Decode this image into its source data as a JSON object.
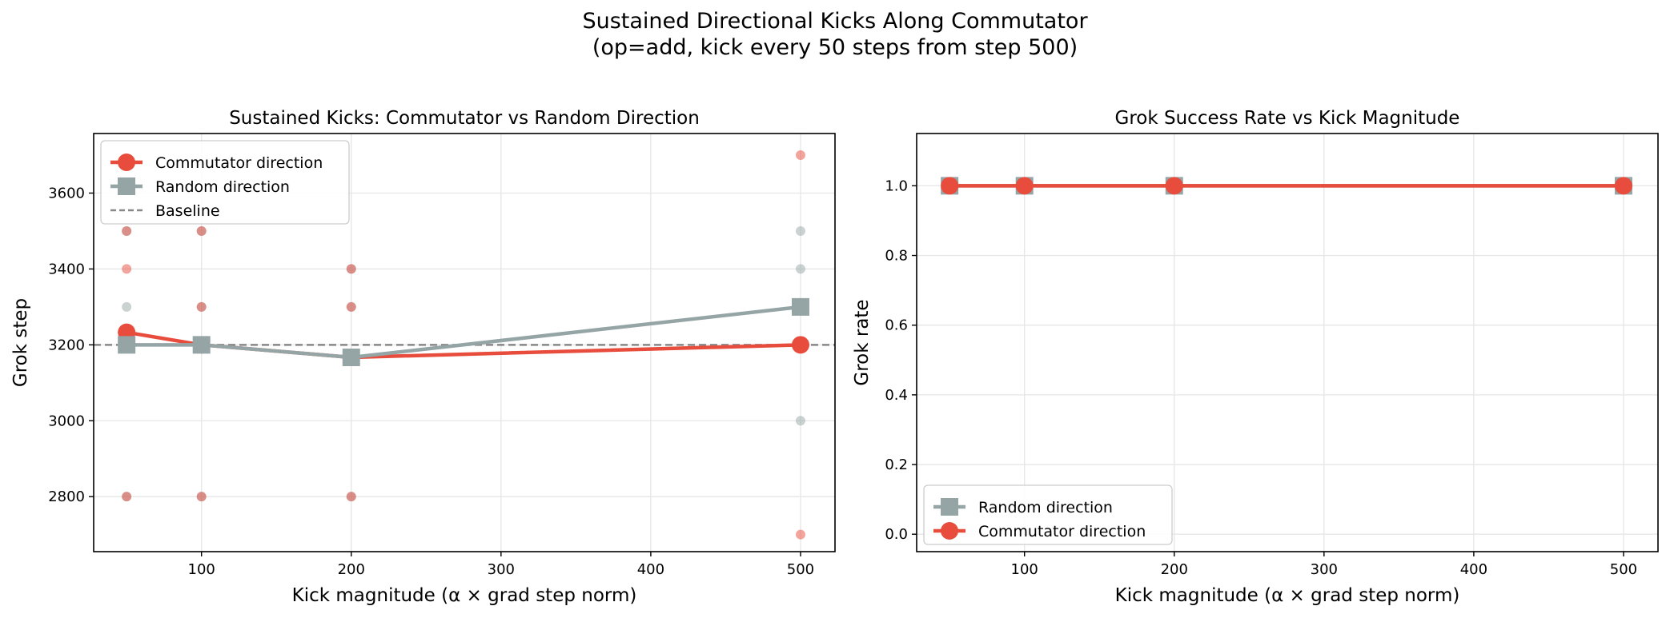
{
  "suptitle": {
    "line1": "Sustained Directional Kicks Along Commutator",
    "line2": "(op=add, kick every 50 steps from step 500)"
  },
  "colors": {
    "commutator": "#e74c3c",
    "random": "#95a5a6",
    "baseline": "#888888",
    "grid": "#e6e6e6"
  },
  "chart_data": [
    {
      "type": "line",
      "title": "Sustained Kicks: Commutator vs Random Direction",
      "xlabel": "Kick magnitude (α × grad step norm)",
      "ylabel": "Grok step",
      "xlim": [
        28,
        523
      ],
      "ylim": [
        2655,
        3757
      ],
      "xticks": [
        100,
        200,
        300,
        400,
        500
      ],
      "yticks": [
        2800,
        3000,
        3200,
        3400,
        3600
      ],
      "grid": true,
      "legend_position": "upper left",
      "series": [
        {
          "name": "Commutator direction",
          "color": "#e74c3c",
          "marker": "circle",
          "x": [
            50,
            100,
            200,
            500
          ],
          "y": [
            3233,
            3200,
            3167,
            3200
          ]
        },
        {
          "name": "Random direction",
          "color": "#95a5a6",
          "marker": "square",
          "x": [
            50,
            100,
            200,
            500
          ],
          "y": [
            3200,
            3200,
            3167,
            3300
          ]
        }
      ],
      "baseline": {
        "name": "Baseline",
        "y": 3200,
        "style": "dashed",
        "color": "#888888"
      },
      "scatter_points": {
        "commutator": [
          {
            "x": 50,
            "y": 3500
          },
          {
            "x": 50,
            "y": 3400
          },
          {
            "x": 50,
            "y": 2800
          },
          {
            "x": 100,
            "y": 3500
          },
          {
            "x": 100,
            "y": 3300
          },
          {
            "x": 100,
            "y": 2800
          },
          {
            "x": 200,
            "y": 3400
          },
          {
            "x": 200,
            "y": 3300
          },
          {
            "x": 200,
            "y": 2800
          },
          {
            "x": 500,
            "y": 3700
          },
          {
            "x": 500,
            "y": 2700
          }
        ],
        "random": [
          {
            "x": 50,
            "y": 3500
          },
          {
            "x": 50,
            "y": 3300
          },
          {
            "x": 50,
            "y": 2800
          },
          {
            "x": 100,
            "y": 3500
          },
          {
            "x": 100,
            "y": 3300
          },
          {
            "x": 100,
            "y": 2800
          },
          {
            "x": 200,
            "y": 3400
          },
          {
            "x": 200,
            "y": 3300
          },
          {
            "x": 200,
            "y": 2800
          },
          {
            "x": 500,
            "y": 3500
          },
          {
            "x": 500,
            "y": 3400
          },
          {
            "x": 500,
            "y": 3000
          }
        ]
      }
    },
    {
      "type": "line",
      "title": "Grok Success Rate vs Kick Magnitude",
      "xlabel": "Kick magnitude (α × grad step norm)",
      "ylabel": "Grok rate",
      "xlim": [
        28,
        523
      ],
      "ylim": [
        -0.05,
        1.15
      ],
      "xticks": [
        100,
        200,
        300,
        400,
        500
      ],
      "yticks": [
        0.0,
        0.2,
        0.4,
        0.6,
        0.8,
        1.0
      ],
      "grid": true,
      "legend_position": "lower left",
      "series": [
        {
          "name": "Random direction",
          "color": "#95a5a6",
          "marker": "square",
          "x": [
            50,
            100,
            200,
            500
          ],
          "y": [
            1.0,
            1.0,
            1.0,
            1.0
          ]
        },
        {
          "name": "Commutator direction",
          "color": "#e74c3c",
          "marker": "circle",
          "x": [
            50,
            100,
            200,
            500
          ],
          "y": [
            1.0,
            1.0,
            1.0,
            1.0
          ]
        }
      ]
    }
  ]
}
